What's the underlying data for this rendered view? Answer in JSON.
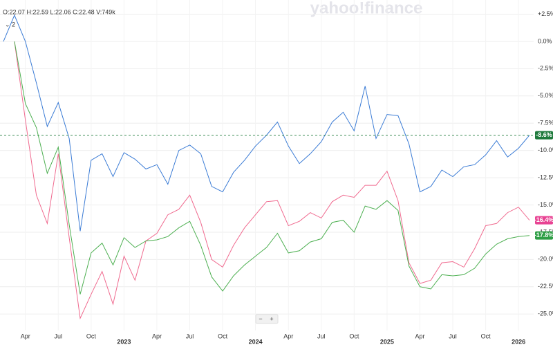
{
  "chart_data": {
    "type": "line",
    "header": "O:22.07 H:22.59 L:22.06 C:22.48 V:749k",
    "count_toggle": "⌄ 2",
    "watermark": "yahoo!finance",
    "zoom_out": "−",
    "zoom_in": "+",
    "categories": [
      null,
      null,
      "Apr",
      null,
      null,
      "Jul",
      null,
      null,
      "Oct",
      null,
      null,
      "2023",
      null,
      null,
      "Apr",
      null,
      null,
      "Jul",
      null,
      null,
      "Oct",
      null,
      null,
      "2024",
      null,
      null,
      "Apr",
      null,
      null,
      "Jul",
      null,
      null,
      "Oct",
      null,
      null,
      "2025",
      null,
      null,
      "Apr",
      null,
      null,
      "Jul",
      null,
      null,
      "Oct",
      null,
      null,
      "2026",
      null
    ],
    "ylim": [
      -26,
      3.8
    ],
    "yticks": [
      {
        "value": 2.5,
        "label": "+2.5%"
      },
      {
        "value": 0,
        "label": "0.0%"
      },
      {
        "value": -2.5,
        "label": "-2.5%"
      },
      {
        "value": -5,
        "label": "-5.0%"
      },
      {
        "value": -7.5,
        "label": "-7.5%"
      },
      {
        "value": -10,
        "label": "-10.0%"
      },
      {
        "value": -12.5,
        "label": "-12.5%"
      },
      {
        "value": -15,
        "label": "-15.0%"
      },
      {
        "value": -17.5,
        "label": "-17.5%"
      },
      {
        "value": -20,
        "label": "-20.0%"
      },
      {
        "value": -22.5,
        "label": "-22.5%"
      },
      {
        "value": -25,
        "label": "-25.0%"
      }
    ],
    "grid": true,
    "series": [
      {
        "color": "#3a7bd5",
        "label_color": "#1e7a3c",
        "values": [
          0,
          2.4,
          0,
          -3.8,
          -7.8,
          -5.6,
          -8.9,
          -17.4,
          -10.9,
          -10.3,
          -12.4,
          -10.2,
          -10.8,
          -11.7,
          -11.3,
          -13.1,
          -10.0,
          -9.5,
          -10.3,
          -13.3,
          -13.8,
          -12.0,
          -10.9,
          -9.6,
          -8.6,
          -7.4,
          -9.6,
          -11.2,
          -10.3,
          -9.2,
          -7.4,
          -6.5,
          -8.2,
          -4.1,
          -8.9,
          -6.7,
          -6.8,
          -9.4,
          -13.8,
          -13.3,
          -11.8,
          -12.4,
          -11.5,
          -11.3,
          -10.4,
          -9.1,
          -10.6,
          -9.8,
          -8.6
        ],
        "value_labels": [
          null,
          null,
          null,
          null,
          null,
          null,
          null,
          null,
          null,
          null,
          null,
          null,
          null,
          null,
          null,
          null,
          null,
          null,
          null,
          null,
          null,
          null,
          null,
          null,
          null,
          null,
          null,
          null,
          null,
          null,
          null,
          null,
          null,
          null,
          null,
          null,
          null,
          null,
          null,
          null,
          null,
          null,
          null,
          null,
          null,
          null,
          null,
          null,
          "-8.6%"
        ]
      },
      {
        "color": "#f06a8f",
        "label_color": "#e84393",
        "values": [
          null,
          0,
          -7.2,
          -14.1,
          -16.7,
          -10.3,
          -18,
          -25.4,
          -23.2,
          -21.1,
          -24.1,
          -19.7,
          -21.9,
          -18.3,
          -17.6,
          -15.9,
          -15.4,
          -14.1,
          -16.6,
          -20,
          -20.7,
          -18.7,
          -17.1,
          -15.9,
          -14.7,
          -14.6,
          -16.9,
          -16.5,
          -15.7,
          -16.2,
          -14.7,
          -14.1,
          -14.3,
          -13.2,
          -13.2,
          -11.9,
          -14.6,
          -20.3,
          -22.2,
          -21.9,
          -20.3,
          -20.2,
          -20.7,
          -19.0,
          -16.9,
          -16.7,
          -15.7,
          -15.2,
          -16.4
        ],
        "value_labels": [
          null,
          null,
          null,
          null,
          null,
          null,
          null,
          null,
          null,
          null,
          null,
          null,
          null,
          null,
          null,
          null,
          null,
          null,
          null,
          null,
          null,
          null,
          null,
          null,
          null,
          null,
          null,
          null,
          null,
          null,
          null,
          null,
          null,
          null,
          null,
          null,
          null,
          null,
          null,
          null,
          null,
          null,
          null,
          null,
          null,
          null,
          null,
          null,
          "-16.4%"
        ]
      },
      {
        "color": "#4caf50",
        "label_color": "#2e9e45",
        "values": [
          null,
          0,
          -5.7,
          -7.9,
          -12.1,
          -9.7,
          -16.8,
          -23.2,
          -19.4,
          -18.5,
          -20.5,
          -18.0,
          -18.9,
          -18.3,
          -18.2,
          -17.9,
          -17.1,
          -16.5,
          -18.7,
          -21.6,
          -22.9,
          -21.5,
          -20.5,
          -19.7,
          -18.9,
          -17.6,
          -19.4,
          -19.2,
          -18.4,
          -18.1,
          -16.6,
          -16.4,
          -17.5,
          -15.1,
          -15.4,
          -14.6,
          -15.5,
          -20.6,
          -22.5,
          -22.7,
          -21.4,
          -21.5,
          -21.4,
          -20.8,
          -19.5,
          -18.6,
          -18.1,
          -17.9,
          -17.8
        ],
        "value_labels": [
          null,
          null,
          null,
          null,
          null,
          null,
          null,
          null,
          null,
          null,
          null,
          null,
          null,
          null,
          null,
          null,
          null,
          null,
          null,
          null,
          null,
          null,
          null,
          null,
          null,
          null,
          null,
          null,
          null,
          null,
          null,
          null,
          null,
          null,
          null,
          null,
          null,
          null,
          null,
          null,
          null,
          null,
          null,
          null,
          null,
          null,
          null,
          null,
          "-17.8%"
        ]
      }
    ]
  }
}
